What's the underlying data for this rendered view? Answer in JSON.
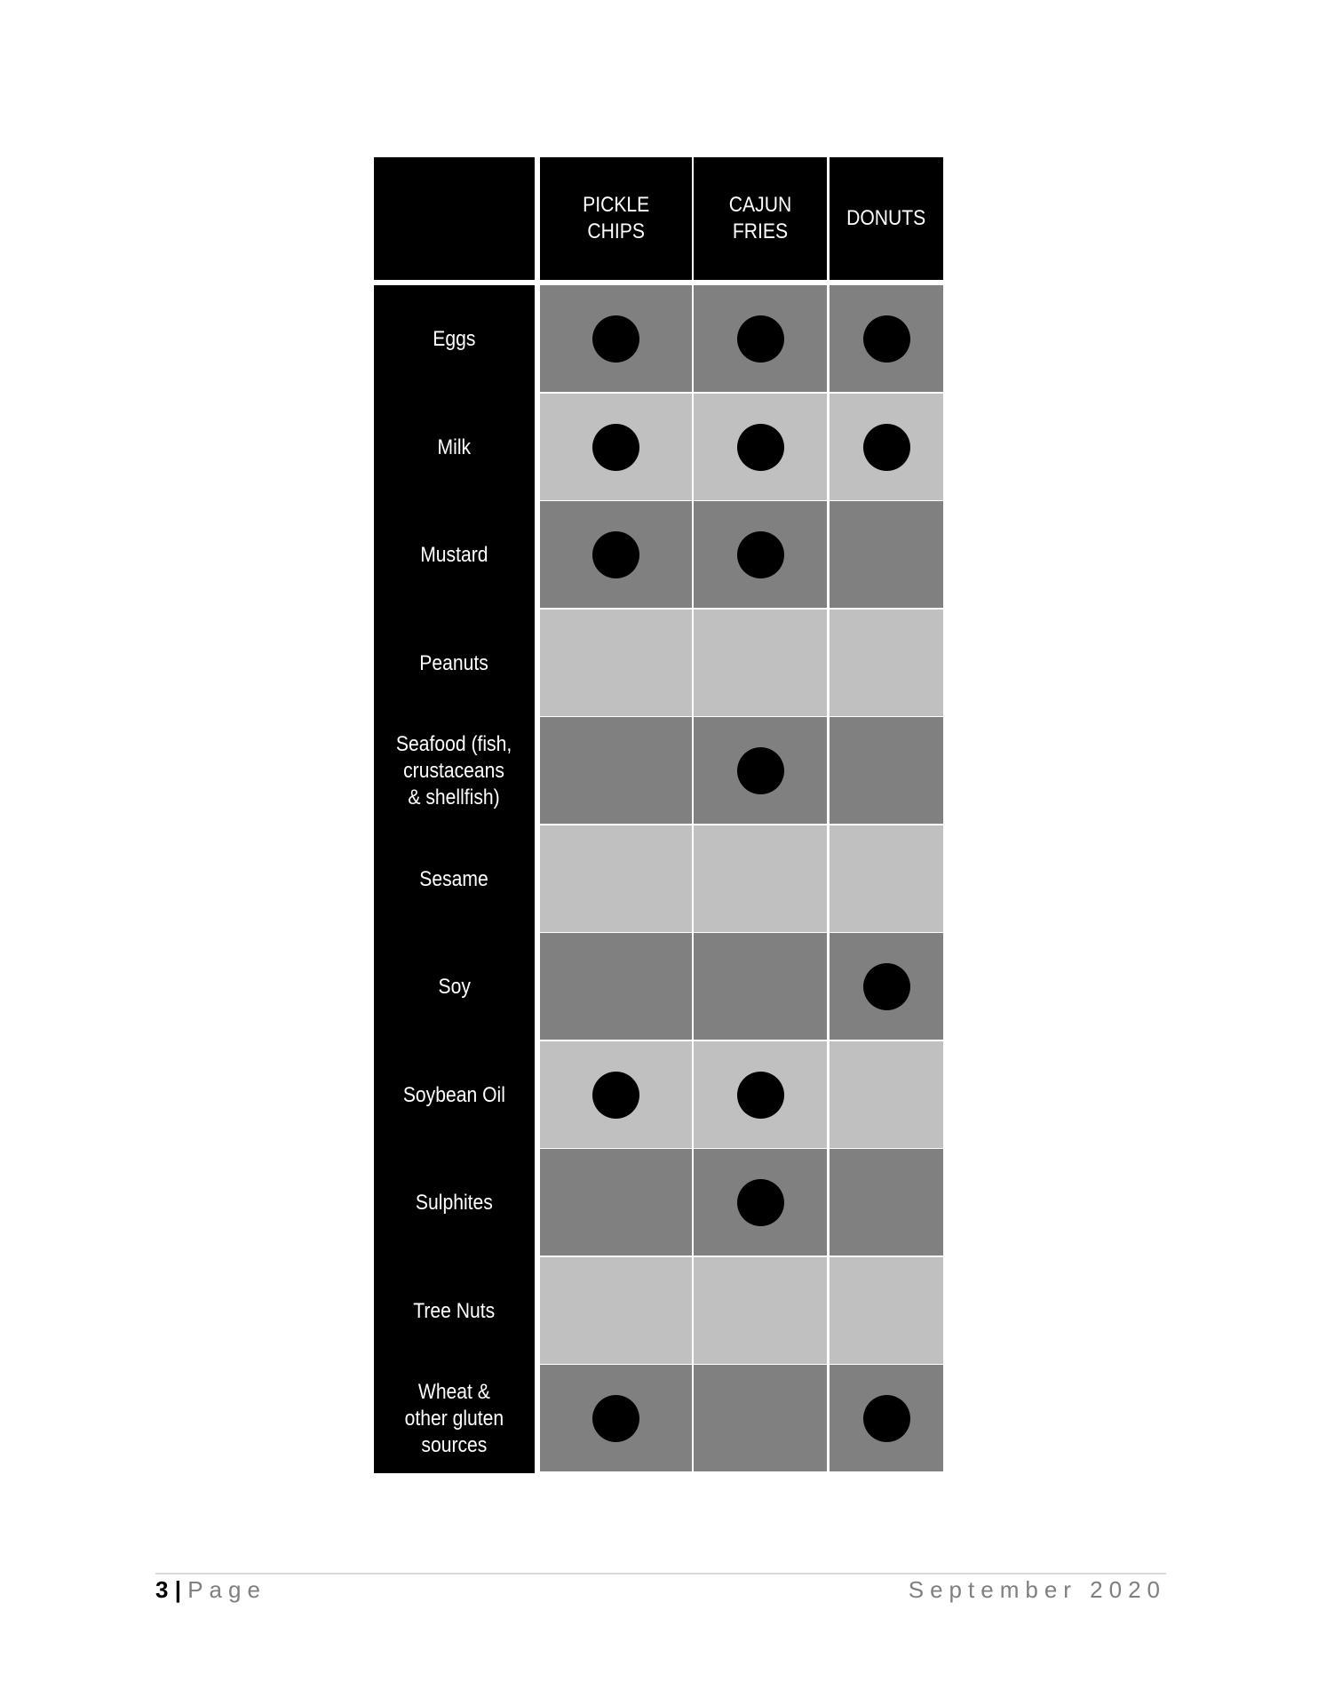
{
  "table": {
    "columns": [
      "",
      "PICKLE\nCHIPS",
      "CAJUN\nFRIES",
      "DONUTS"
    ],
    "column_labels": [
      [
        "PICKLE",
        "CHIPS"
      ],
      [
        "CAJUN",
        "FRIES"
      ],
      [
        "DONUTS"
      ]
    ],
    "rows": [
      {
        "allergen": [
          "Eggs"
        ],
        "contains": [
          true,
          true,
          true
        ]
      },
      {
        "allergen": [
          "Milk"
        ],
        "contains": [
          true,
          true,
          true
        ]
      },
      {
        "allergen": [
          "Mustard"
        ],
        "contains": [
          true,
          true,
          false
        ]
      },
      {
        "allergen": [
          "Peanuts"
        ],
        "contains": [
          false,
          false,
          false
        ]
      },
      {
        "allergen": [
          "Seafood (fish,",
          "crustaceans",
          "& shellfish)"
        ],
        "contains": [
          false,
          true,
          false
        ]
      },
      {
        "allergen": [
          "Sesame"
        ],
        "contains": [
          false,
          false,
          false
        ]
      },
      {
        "allergen": [
          "Soy"
        ],
        "contains": [
          false,
          false,
          true
        ]
      },
      {
        "allergen": [
          "Soybean Oil"
        ],
        "contains": [
          true,
          true,
          false
        ]
      },
      {
        "allergen": [
          "Sulphites"
        ],
        "contains": [
          false,
          true,
          false
        ]
      },
      {
        "allergen": [
          "Tree Nuts"
        ],
        "contains": [
          false,
          false,
          false
        ]
      },
      {
        "allergen": [
          "Wheat &",
          "other gluten",
          "sources"
        ],
        "contains": [
          true,
          false,
          true
        ]
      }
    ],
    "marker_icon": "filled-circle",
    "colors": {
      "header": "#000000",
      "row_dark": "#808080",
      "row_light": "#c0c0c0",
      "marker": "#000000"
    }
  },
  "footer": {
    "page_number": "3",
    "separator": "|",
    "page_word": "Page",
    "date": "September 2020"
  }
}
